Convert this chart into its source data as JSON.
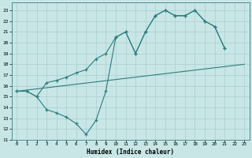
{
  "xlabel": "Humidex (Indice chaleur)",
  "xlim": [
    -0.5,
    23.5
  ],
  "ylim": [
    11,
    23.7
  ],
  "yticks": [
    11,
    12,
    13,
    14,
    15,
    16,
    17,
    18,
    19,
    20,
    21,
    22,
    23
  ],
  "xticks": [
    0,
    1,
    2,
    3,
    4,
    5,
    6,
    7,
    8,
    9,
    10,
    11,
    12,
    13,
    14,
    15,
    16,
    17,
    18,
    19,
    20,
    21,
    22,
    23
  ],
  "line_color": "#2e7d7d",
  "bg_color": "#c8e6e6",
  "grid_color": "#aacfcf",
  "line1_x": [
    0,
    1,
    2,
    3,
    4,
    5,
    6,
    7,
    8,
    9,
    10,
    11,
    12,
    13,
    14,
    15,
    16,
    17,
    18,
    19,
    20,
    21
  ],
  "line1_y": [
    15.5,
    15.5,
    15.0,
    16.3,
    16.5,
    16.8,
    17.2,
    17.5,
    18.5,
    19.0,
    20.5,
    21.0,
    19.0,
    21.0,
    22.5,
    23.0,
    22.5,
    22.5,
    23.0,
    22.0,
    21.5,
    19.5
  ],
  "line2_x": [
    0,
    23
  ],
  "line2_y": [
    15.5,
    18.0
  ],
  "line3_x": [
    0,
    1,
    2,
    3,
    4,
    5,
    6,
    7,
    8,
    9,
    10,
    11,
    12,
    13,
    14,
    15,
    16,
    17,
    18,
    19,
    20,
    21
  ],
  "line3_y": [
    15.5,
    15.5,
    15.0,
    13.8,
    13.5,
    13.1,
    12.5,
    11.5,
    12.8,
    15.5,
    20.5,
    21.0,
    19.0,
    21.0,
    22.5,
    23.0,
    22.5,
    22.5,
    23.0,
    22.0,
    21.5,
    19.5
  ]
}
